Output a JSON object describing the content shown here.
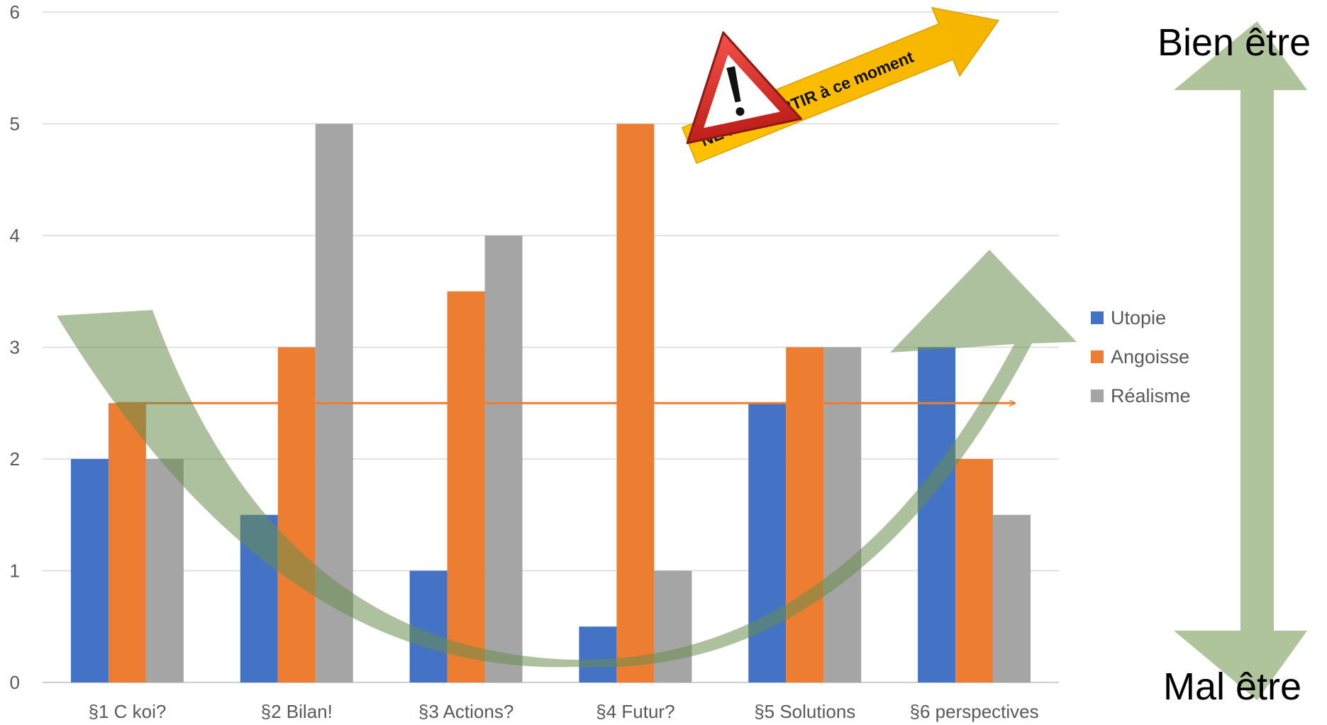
{
  "chart_data": {
    "type": "bar",
    "categories": [
      "§1 C koi?",
      "§2 Bilan!",
      "§3 Actions?",
      "§4 Futur?",
      "§5 Solutions",
      "§6 perspectives"
    ],
    "series": [
      {
        "name": "Utopie",
        "values": [
          2,
          1.5,
          1,
          0.5,
          2.5,
          3
        ],
        "color": "#4472C4"
      },
      {
        "name": "Angoisse",
        "values": [
          2.5,
          3,
          3.5,
          5,
          3,
          2
        ],
        "color": "#ED7D31"
      },
      {
        "name": "Réalisme",
        "values": [
          2,
          5,
          4,
          1,
          3,
          1.5
        ],
        "color": "#A5A5A5"
      }
    ],
    "yticks": [
      "0",
      "1",
      "2",
      "3",
      "4",
      "5",
      "6"
    ],
    "ylim": [
      0,
      6
    ],
    "grid": true,
    "legend_position": "right",
    "reference_line": {
      "y": 2.5,
      "color": "#ED7D31"
    },
    "annotations": {
      "warning_text": "NE PAS PARTIR à ce moment",
      "top_label": "Bien être",
      "bottom_label": "Mal être"
    }
  }
}
